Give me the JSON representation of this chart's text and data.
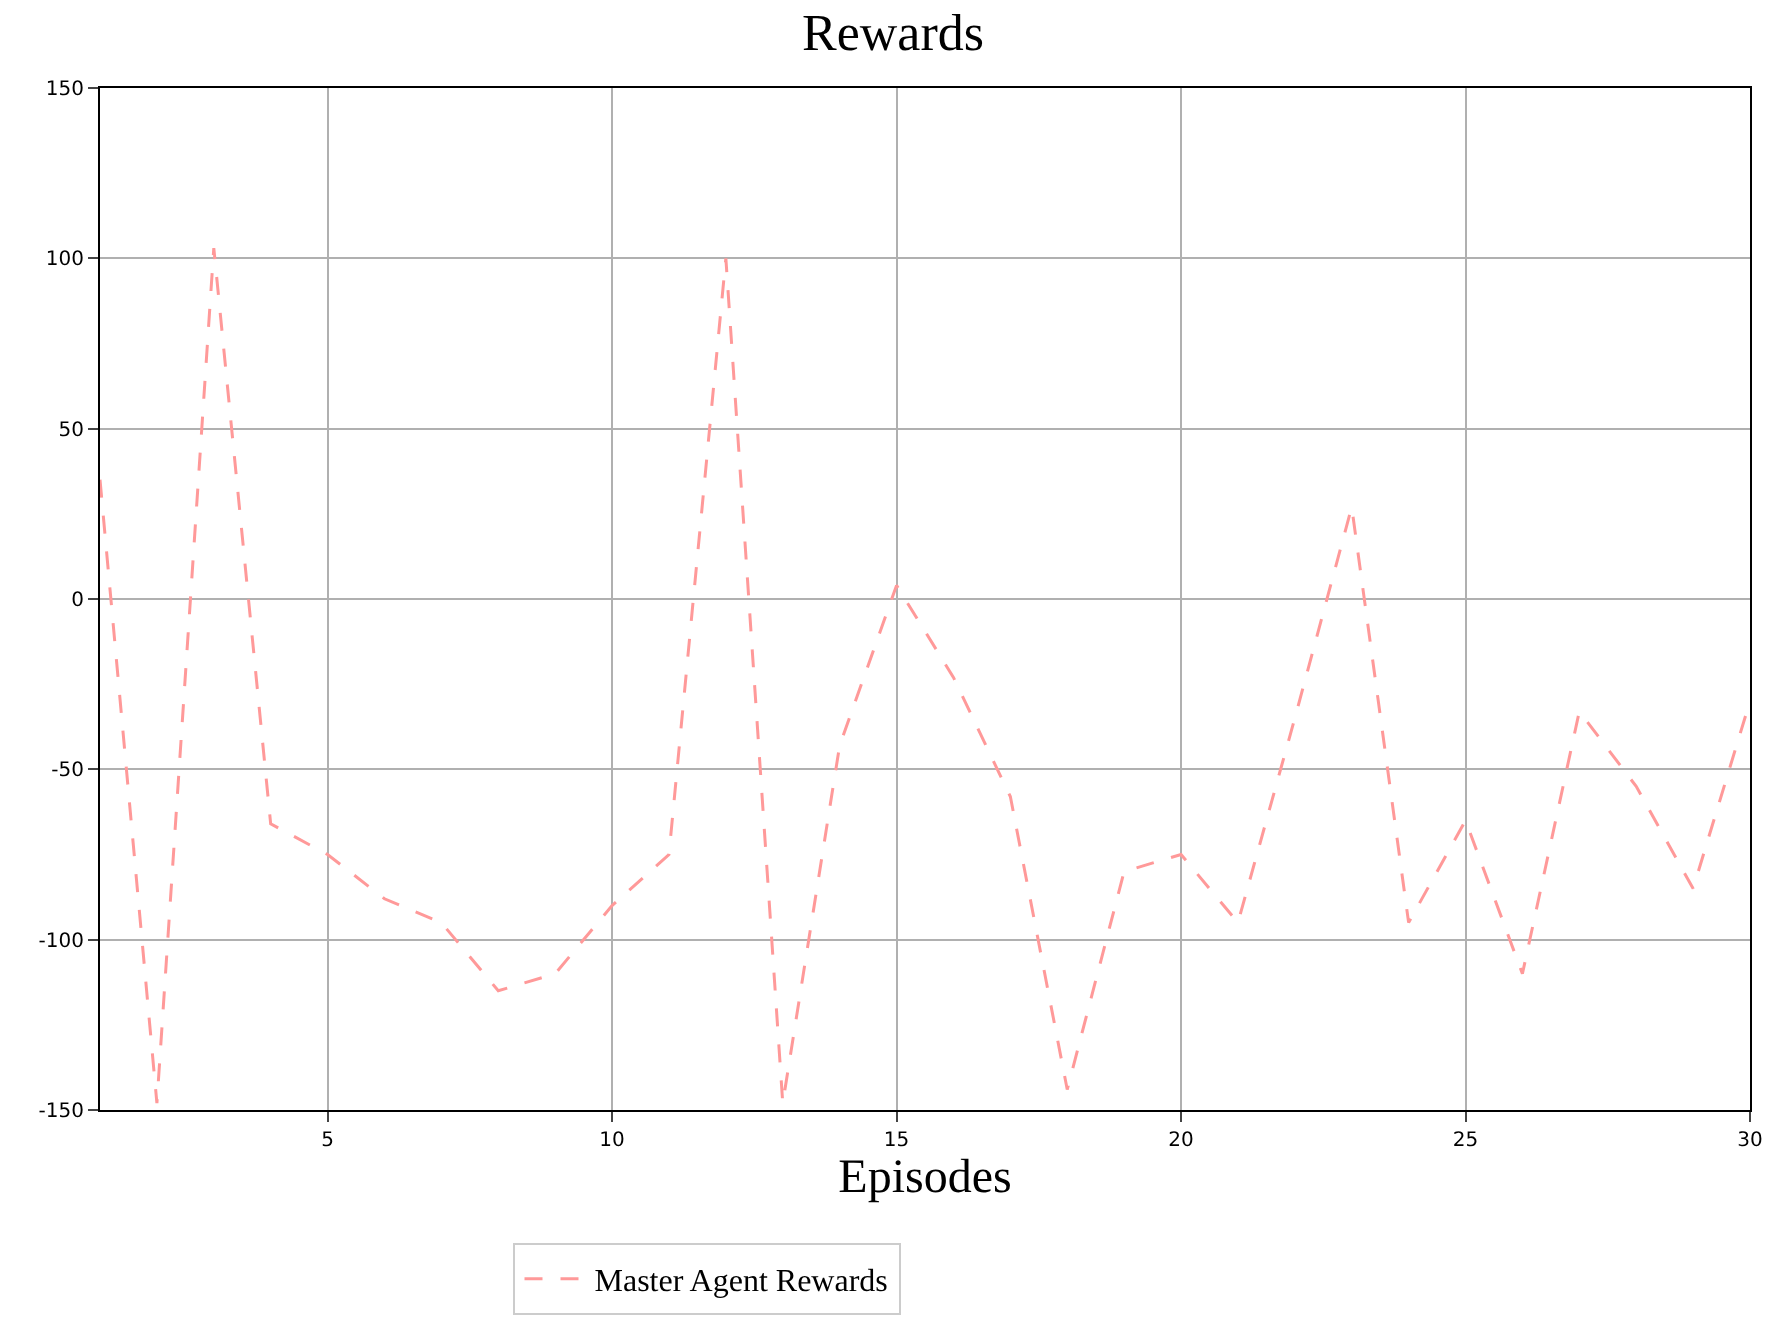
{
  "chart_data": {
    "type": "line",
    "title": "Rewards",
    "xlabel": "Episodes",
    "x": [
      1,
      2,
      3,
      4,
      5,
      6,
      7,
      8,
      9,
      10,
      11,
      12,
      13,
      14,
      15,
      16,
      17,
      18,
      19,
      20,
      21,
      22,
      23,
      24,
      25,
      26,
      27,
      28,
      29,
      30
    ],
    "series": [
      {
        "name": "Master Agent Rewards",
        "color": "#ff9999",
        "values": [
          35,
          -148,
          103,
          -66,
          -75,
          -88,
          -95,
          -115,
          -110,
          -90,
          -75,
          100,
          -148,
          -43,
          4,
          -23,
          -58,
          -144,
          -80,
          -75,
          -95,
          -35,
          27,
          -95,
          -65,
          -110,
          -33,
          -55,
          -85,
          -30
        ]
      }
    ],
    "xlim": [
      1,
      30
    ],
    "xticks": [
      5,
      10,
      15,
      20,
      25,
      30
    ],
    "ylim": [
      -150,
      150
    ],
    "yticks": [
      -150,
      -100,
      -50,
      0,
      50,
      100,
      150
    ],
    "grid": true,
    "legend": "bottom",
    "line_style": "dashed",
    "marker": "none"
  }
}
